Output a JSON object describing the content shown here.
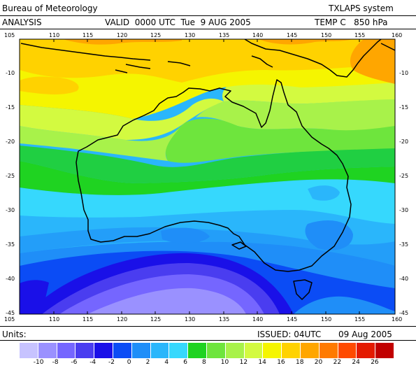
{
  "header": {
    "agency": "Bureau of Meteorology",
    "system": "TXLAPS system",
    "product": "ANALYSIS",
    "valid": "VALID  0000 UTC  Tue  9 AUG 2005",
    "field": "TEMP C   850 hPa"
  },
  "footer": {
    "units_label": "Units:",
    "issued": "ISSUED: 04UTC",
    "date": "09 Aug 2005"
  },
  "map": {
    "lon_ticks": [
      "105",
      "110",
      "115",
      "120",
      "125",
      "130",
      "135",
      "140",
      "145",
      "150",
      "155",
      "160"
    ],
    "lat_ticks": [
      "-10",
      "-15",
      "-20",
      "-25",
      "-30",
      "-35",
      "-40",
      "-45"
    ],
    "extent": {
      "lon_min": 105,
      "lon_max": 160,
      "lat_min": -45,
      "lat_max": -5
    }
  },
  "legend": {
    "labels": [
      "-10",
      "-8",
      "-6",
      "-4",
      "-2",
      "0",
      "2",
      "4",
      "6",
      "8",
      "10",
      "12",
      "14",
      "16",
      "18",
      "20",
      "22",
      "24",
      "26"
    ],
    "colors": [
      "#c7c3ff",
      "#9a91ff",
      "#7566ff",
      "#4a3df0",
      "#1a10e8",
      "#0b4cf5",
      "#1f8ef8",
      "#2ab6fb",
      "#36d8fd",
      "#1fd321",
      "#6ee53d",
      "#a8f24a",
      "#d3fa40",
      "#f5f500",
      "#ffd200",
      "#ffa600",
      "#ff7a00",
      "#ff4a00",
      "#e41a00",
      "#c10000"
    ]
  }
}
